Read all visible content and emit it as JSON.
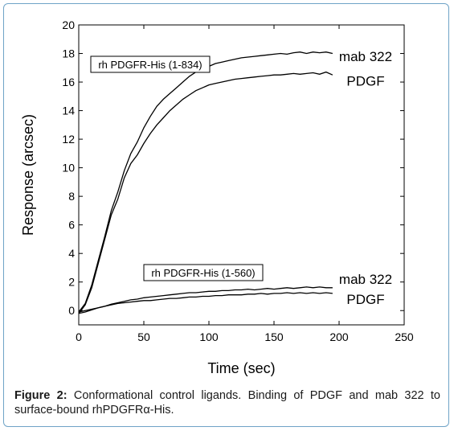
{
  "chart_data": {
    "type": "line",
    "xlabel": "Time (sec)",
    "ylabel": "Response (arcsec)",
    "xlim": [
      0,
      250
    ],
    "ylim": [
      -1,
      20
    ],
    "x_ticks": [
      0,
      50,
      100,
      150,
      200,
      250
    ],
    "y_ticks": [
      0,
      2,
      4,
      6,
      8,
      10,
      12,
      14,
      16,
      18,
      20
    ],
    "grid": false,
    "annotations": {
      "top_box": "rh PDGFR-His (1-834)",
      "bottom_box": "rh PDGFR-His (1-560)"
    },
    "groups": [
      {
        "box_label": "rh PDGFR-His (1-834)",
        "series": [
          {
            "name": "mab 322",
            "x": [
              0,
              5,
              10,
              15,
              20,
              25,
              30,
              35,
              40,
              45,
              50,
              55,
              60,
              65,
              70,
              75,
              80,
              85,
              90,
              95,
              100,
              105,
              110,
              115,
              120,
              125,
              130,
              135,
              140,
              145,
              150,
              155,
              160,
              165,
              170,
              175,
              180,
              185,
              190,
              195
            ],
            "y": [
              -0.1,
              0.5,
              1.8,
              3.5,
              5.2,
              7.0,
              8.3,
              9.8,
              11.0,
              11.8,
              12.8,
              13.6,
              14.3,
              14.8,
              15.2,
              15.6,
              16.0,
              16.4,
              16.7,
              16.9,
              17.1,
              17.3,
              17.4,
              17.5,
              17.6,
              17.7,
              17.75,
              17.8,
              17.85,
              17.9,
              17.95,
              18.0,
              17.95,
              18.05,
              18.1,
              18.0,
              18.1,
              18.05,
              18.1,
              18.0
            ]
          },
          {
            "name": "PDGF",
            "x": [
              0,
              5,
              10,
              15,
              20,
              25,
              30,
              35,
              40,
              45,
              50,
              55,
              60,
              65,
              70,
              75,
              80,
              85,
              90,
              95,
              100,
              105,
              110,
              115,
              120,
              125,
              130,
              135,
              140,
              145,
              150,
              155,
              160,
              165,
              170,
              175,
              180,
              185,
              190,
              195
            ],
            "y": [
              -0.2,
              0.4,
              1.6,
              3.3,
              5.0,
              6.7,
              7.8,
              9.3,
              10.3,
              10.9,
              11.7,
              12.4,
              13.0,
              13.5,
              14.0,
              14.4,
              14.8,
              15.1,
              15.4,
              15.6,
              15.8,
              15.9,
              16.0,
              16.1,
              16.2,
              16.25,
              16.3,
              16.35,
              16.4,
              16.45,
              16.5,
              16.5,
              16.55,
              16.6,
              16.55,
              16.6,
              16.65,
              16.55,
              16.7,
              16.5
            ]
          }
        ]
      },
      {
        "box_label": "rh PDGFR-His (1-560)",
        "series": [
          {
            "name": "mab 322",
            "x": [
              0,
              5,
              10,
              15,
              20,
              25,
              30,
              35,
              40,
              45,
              50,
              55,
              60,
              65,
              70,
              75,
              80,
              85,
              90,
              95,
              100,
              105,
              110,
              115,
              120,
              125,
              130,
              135,
              140,
              145,
              150,
              155,
              160,
              165,
              170,
              175,
              180,
              185,
              190,
              195
            ],
            "y": [
              -0.1,
              0.0,
              0.1,
              0.2,
              0.3,
              0.45,
              0.55,
              0.65,
              0.75,
              0.8,
              0.9,
              0.95,
              1.0,
              1.05,
              1.1,
              1.15,
              1.2,
              1.25,
              1.25,
              1.3,
              1.35,
              1.35,
              1.4,
              1.4,
              1.45,
              1.45,
              1.5,
              1.45,
              1.5,
              1.55,
              1.5,
              1.55,
              1.6,
              1.55,
              1.6,
              1.65,
              1.6,
              1.65,
              1.6,
              1.6
            ]
          },
          {
            "name": "PDGF",
            "x": [
              0,
              5,
              10,
              15,
              20,
              25,
              30,
              35,
              40,
              45,
              50,
              55,
              60,
              65,
              70,
              75,
              80,
              85,
              90,
              95,
              100,
              105,
              110,
              115,
              120,
              125,
              130,
              135,
              140,
              145,
              150,
              155,
              160,
              165,
              170,
              175,
              180,
              185,
              190,
              195
            ],
            "y": [
              -0.2,
              -0.1,
              0.05,
              0.2,
              0.3,
              0.4,
              0.5,
              0.55,
              0.6,
              0.65,
              0.7,
              0.7,
              0.75,
              0.8,
              0.85,
              0.85,
              0.9,
              0.95,
              0.95,
              1.0,
              1.0,
              1.05,
              1.05,
              1.1,
              1.1,
              1.1,
              1.15,
              1.15,
              1.2,
              1.15,
              1.2,
              1.2,
              1.25,
              1.2,
              1.25,
              1.2,
              1.25,
              1.2,
              1.25,
              1.2
            ]
          }
        ]
      }
    ]
  },
  "caption": {
    "label": "Figure 2:",
    "text": " Conformational control ligands. Binding of PDGF and mab 322 to surface-bound rhPDGFRα-His."
  }
}
